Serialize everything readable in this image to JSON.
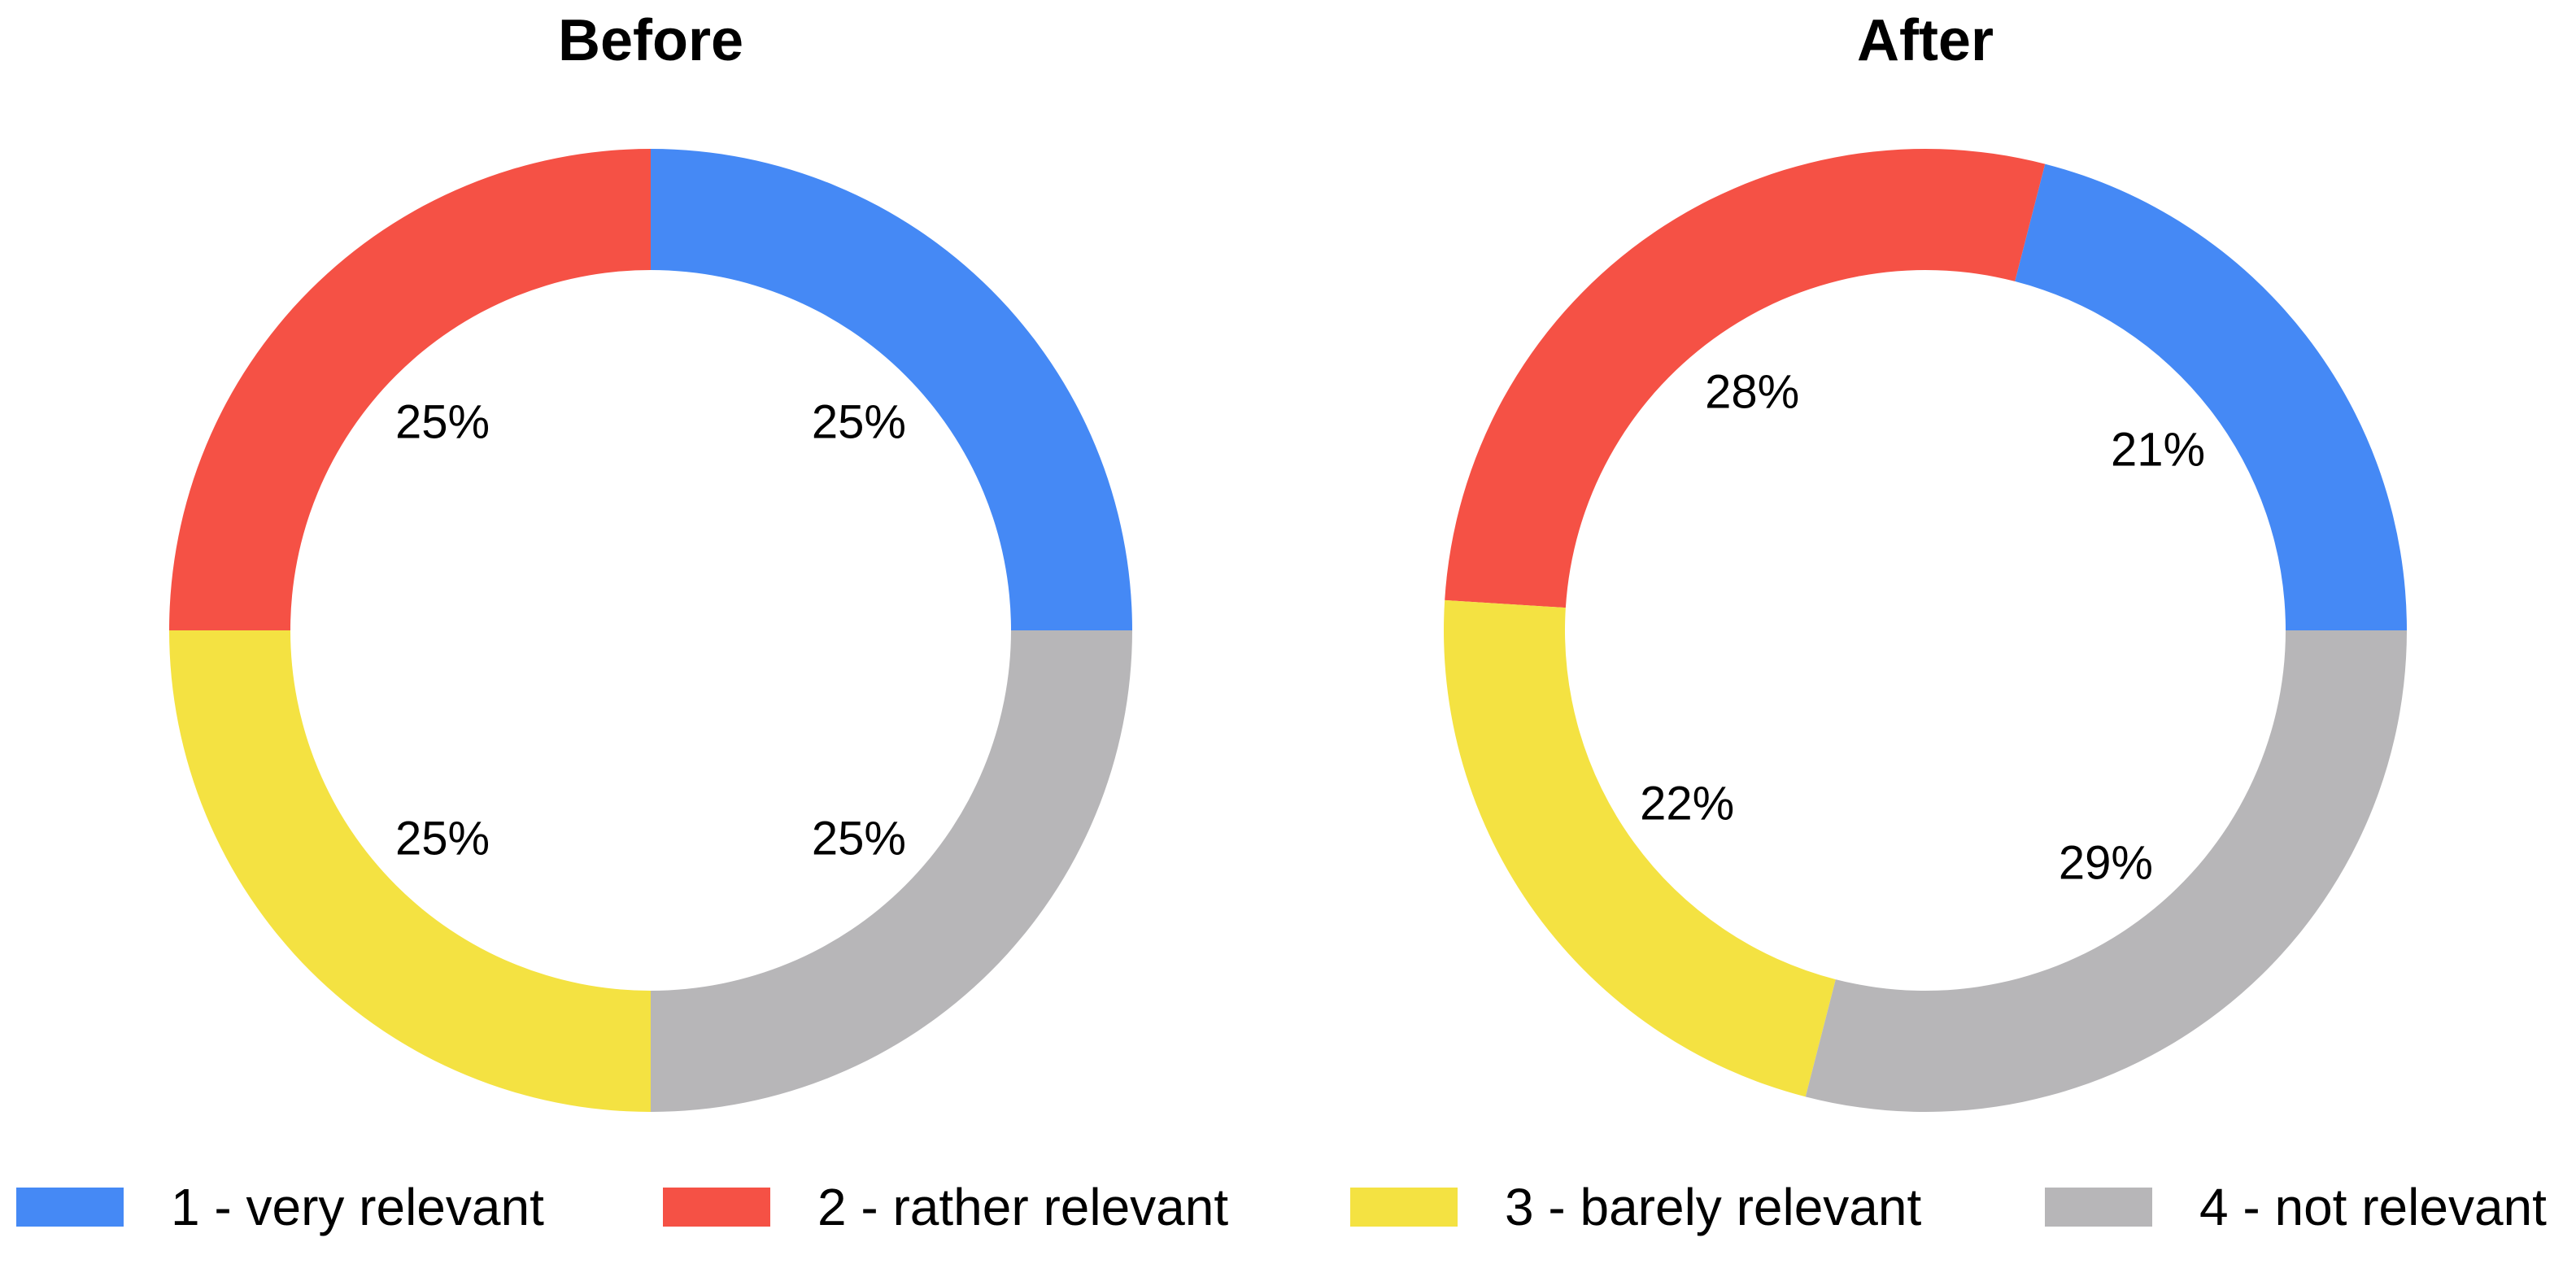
{
  "chart_data": [
    {
      "type": "pie",
      "title": "Before",
      "categories": [
        "1 - very relevant",
        "2 - rather relevant",
        "3 - barely relevant",
        "4 - not relevant"
      ],
      "values": [
        25,
        25,
        25,
        25
      ],
      "labels": [
        "25%",
        "25%",
        "25%",
        "25%"
      ]
    },
    {
      "type": "pie",
      "title": "After",
      "categories": [
        "1 - very relevant",
        "2 - rather relevant",
        "3 - barely relevant",
        "4 - not relevant"
      ],
      "values": [
        21,
        28,
        22,
        29
      ],
      "labels": [
        "21%",
        "28%",
        "22%",
        "29%"
      ]
    }
  ],
  "legend": {
    "position": "bottom",
    "items": [
      {
        "label": "1 - very relevant",
        "color": "#4589F5"
      },
      {
        "label": "2 - rather relevant",
        "color": "#F55145"
      },
      {
        "label": "3 - barely relevant",
        "color": "#F4E242"
      },
      {
        "label": "4 - not relevant",
        "color": "#B7B6B8"
      }
    ]
  }
}
